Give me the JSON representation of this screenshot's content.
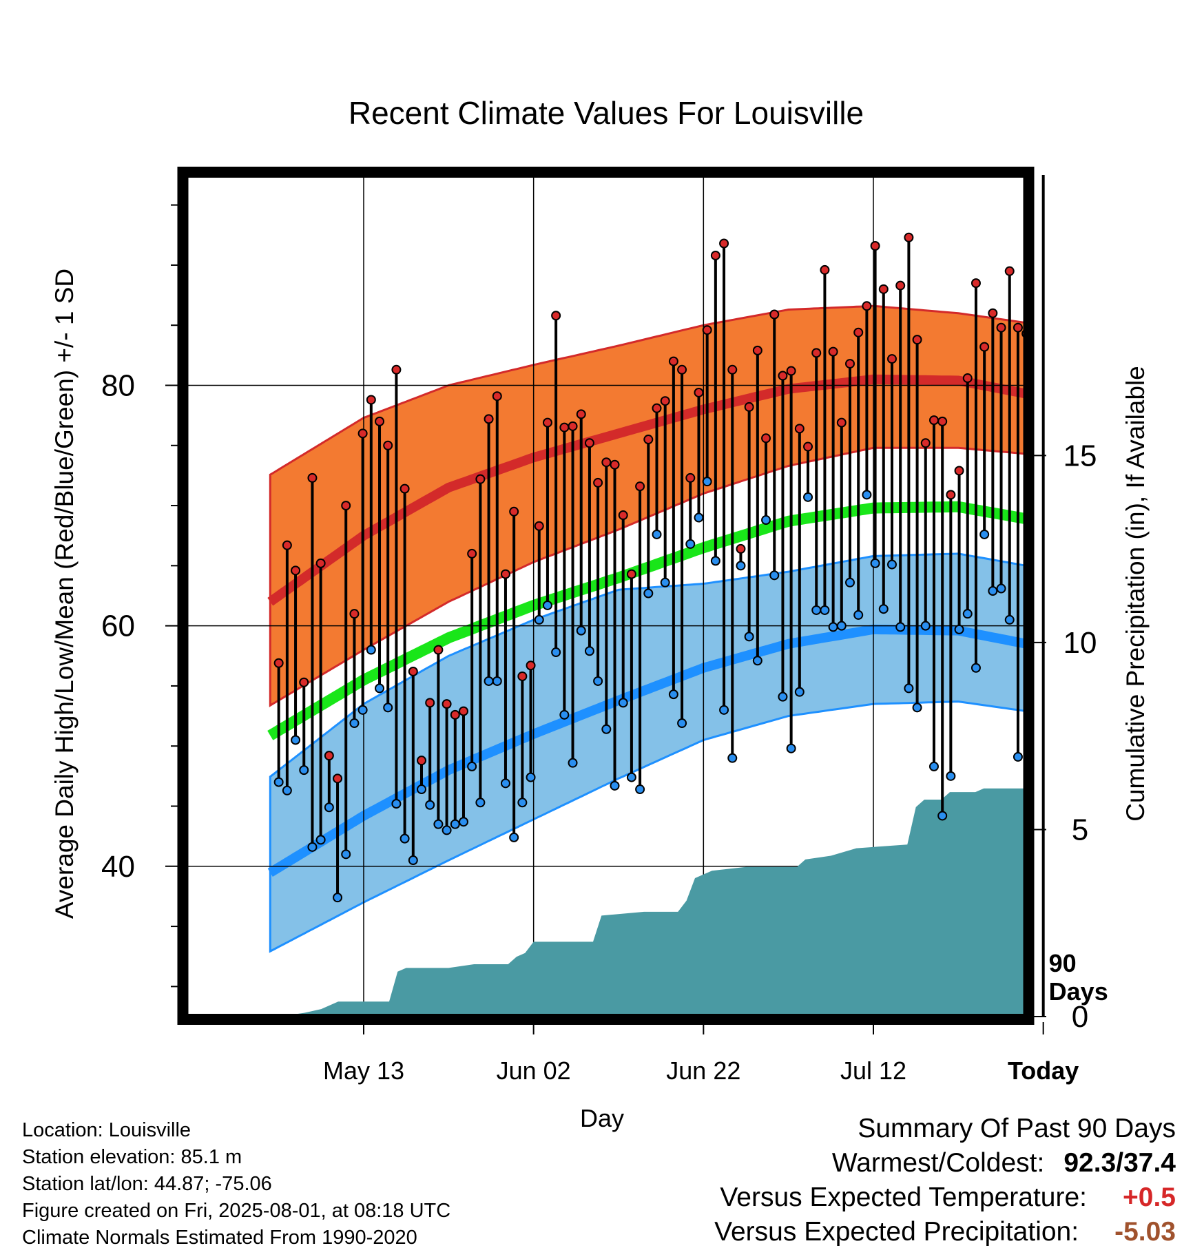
{
  "chart_data": {
    "type": "line",
    "title": "Recent Climate Values For Louisville",
    "xlabel": "Day",
    "ylabel": "Average Daily High/Low/Mean (Red/Blue/Green) +/- 1 SD",
    "y2label": "Cumulative Precipitation (in), If Available",
    "x_range_days": [
      -101,
      -2
    ],
    "ylim": [
      27.5,
      97.5
    ],
    "y2lim": [
      0,
      22.5
    ],
    "y_ticks": [
      "40",
      "60",
      "80"
    ],
    "y2_ticks": [
      "0",
      "5",
      "10",
      "15"
    ],
    "x_ticks": [
      {
        "day": -80,
        "label": "May 13"
      },
      {
        "day": -60,
        "label": "Jun 02"
      },
      {
        "day": -40,
        "label": "Jun 22"
      },
      {
        "day": -20,
        "label": "Jul 12"
      },
      {
        "day": 0,
        "label": "Today"
      }
    ],
    "grid": true,
    "today_marker_label": [
      "90",
      "Days"
    ],
    "normals_days": [
      -90,
      -80,
      -70,
      -60,
      -50,
      -40,
      -30,
      -20,
      -10,
      -2
    ],
    "normal_high_mean": [
      62.5,
      67.5,
      71.5,
      74.0,
      76.0,
      78.0,
      79.7,
      80.5,
      80.4,
      79.3
    ],
    "normal_high_sd_upper": [
      73.0,
      77.3,
      80.0,
      81.7,
      83.3,
      85.0,
      86.3,
      86.6,
      86.0,
      85.2
    ],
    "normal_high_sd_lower": [
      53.8,
      58.0,
      62.0,
      65.3,
      68.0,
      71.0,
      73.3,
      74.8,
      74.8,
      74.3
    ],
    "normal_mean": [
      51.3,
      55.5,
      59.0,
      61.7,
      64.0,
      66.5,
      68.7,
      69.8,
      69.9,
      68.9
    ],
    "normal_low_mean": [
      39.9,
      44.2,
      48.0,
      51.0,
      53.8,
      56.5,
      58.5,
      59.7,
      59.6,
      58.5
    ],
    "normal_low_sd_upper": [
      48.0,
      53.5,
      57.5,
      60.5,
      63.0,
      63.5,
      64.5,
      65.8,
      66.0,
      65.0
    ],
    "normal_low_sd_lower": [
      33.3,
      37.0,
      40.5,
      43.9,
      47.3,
      50.5,
      52.5,
      53.5,
      53.7,
      52.9
    ],
    "daily_high": [
      56.9,
      66.7,
      64.6,
      55.3,
      72.3,
      65.2,
      49.2,
      47.3,
      70.0,
      61.0,
      76.0,
      78.8,
      77.0,
      75.0,
      81.3,
      71.4,
      56.2,
      48.8,
      53.6,
      58.0,
      53.5,
      52.6,
      52.9,
      66.0,
      72.2,
      77.2,
      79.1,
      64.3,
      69.5,
      55.8,
      56.7,
      68.3,
      76.9,
      85.8,
      76.5,
      76.6,
      77.6,
      75.2,
      71.9,
      73.6,
      73.4,
      69.2,
      64.3,
      71.6,
      75.5,
      78.1,
      78.7,
      82.0,
      81.3,
      72.3,
      79.4,
      84.6,
      90.8,
      91.8,
      81.3,
      66.4,
      78.2,
      82.9,
      75.6,
      85.9,
      80.8,
      81.2,
      76.4,
      74.9,
      82.7,
      89.6,
      82.8,
      76.9,
      81.8,
      84.4,
      86.6,
      91.6,
      88.0,
      82.2,
      88.3,
      92.3,
      83.8,
      75.2,
      77.1,
      77.0,
      70.9,
      72.9,
      80.6,
      88.5,
      83.2,
      86.0,
      84.8,
      89.5,
      84.8,
      84.3,
      71.5
    ],
    "daily_low": [
      47.0,
      46.3,
      50.5,
      48.0,
      41.6,
      42.2,
      44.9,
      37.4,
      41.0,
      51.9,
      53.0,
      58.0,
      54.8,
      53.2,
      45.2,
      42.3,
      40.5,
      46.4,
      45.1,
      43.5,
      43.0,
      43.5,
      43.7,
      48.3,
      45.3,
      55.4,
      55.4,
      46.9,
      42.4,
      45.3,
      47.4,
      60.5,
      61.7,
      57.8,
      52.6,
      48.6,
      59.6,
      57.9,
      55.4,
      51.4,
      46.7,
      53.6,
      47.4,
      46.4,
      62.7,
      67.6,
      63.6,
      54.3,
      51.9,
      66.8,
      69.0,
      72.0,
      65.4,
      53.0,
      49.0,
      65.0,
      59.1,
      57.1,
      68.8,
      64.2,
      54.1,
      49.8,
      54.5,
      70.7,
      61.3,
      61.3,
      59.9,
      60.0,
      63.6,
      60.9,
      70.9,
      65.2,
      61.4,
      65.1,
      59.9,
      54.8,
      53.2,
      60.0,
      48.3,
      44.2,
      47.5,
      59.7,
      61.0,
      56.5,
      67.6,
      62.9,
      63.1,
      60.5,
      49.1
    ],
    "precip_cumulative": [
      [
        -90,
        0
      ],
      [
        -87,
        0.1
      ],
      [
        -85,
        0.2
      ],
      [
        -83,
        0.4
      ],
      [
        -77,
        0.4
      ],
      [
        -76,
        1.2
      ],
      [
        -75,
        1.3
      ],
      [
        -70,
        1.3
      ],
      [
        -67,
        1.4
      ],
      [
        -63,
        1.4
      ],
      [
        -62,
        1.6
      ],
      [
        -61,
        1.7
      ],
      [
        -60,
        2.0
      ],
      [
        -53,
        2.0
      ],
      [
        -52,
        2.7
      ],
      [
        -47,
        2.8
      ],
      [
        -43,
        2.8
      ],
      [
        -42,
        3.1
      ],
      [
        -41,
        3.7
      ],
      [
        -39,
        3.9
      ],
      [
        -35,
        4.0
      ],
      [
        -29,
        4.0
      ],
      [
        -28,
        4.2
      ],
      [
        -25,
        4.3
      ],
      [
        -22,
        4.5
      ],
      [
        -16,
        4.6
      ],
      [
        -15,
        5.6
      ],
      [
        -14,
        5.8
      ],
      [
        -12,
        5.8
      ],
      [
        -11,
        6.0
      ],
      [
        -8,
        6.0
      ],
      [
        -7,
        6.1
      ],
      [
        0,
        6.1
      ],
      [
        9,
        6.1
      ]
    ]
  },
  "footer_left": [
    "Location: Louisville",
    "Station elevation: 85.1 m",
    "Station lat/lon: 44.87; -75.06",
    "Figure created on Fri, 2025-08-01, at 08:18 UTC",
    "Climate Normals Estimated From 1990-2020"
  ],
  "summary": {
    "heading": "Summary Of Past 90 Days",
    "warm_cold_label": "Warmest/Coldest:",
    "warm_cold_value": "92.3/37.4",
    "temp_label": "Versus Expected Temperature:",
    "temp_value": "+0.5",
    "temp_color": "#d62728",
    "precip_label": "Versus Expected Precipitation:",
    "precip_value": "-5.03",
    "precip_color": "#a0522d"
  },
  "colors": {
    "high_band": "#f37a31",
    "high_line": "#d32a2a",
    "mean_line": "#19e619",
    "low_band": "#84c1e8",
    "low_line": "#1e90ff",
    "precip_fill": "#4a9aa3",
    "high_point": "#d92a2a",
    "low_point": "#2a8ff0"
  }
}
